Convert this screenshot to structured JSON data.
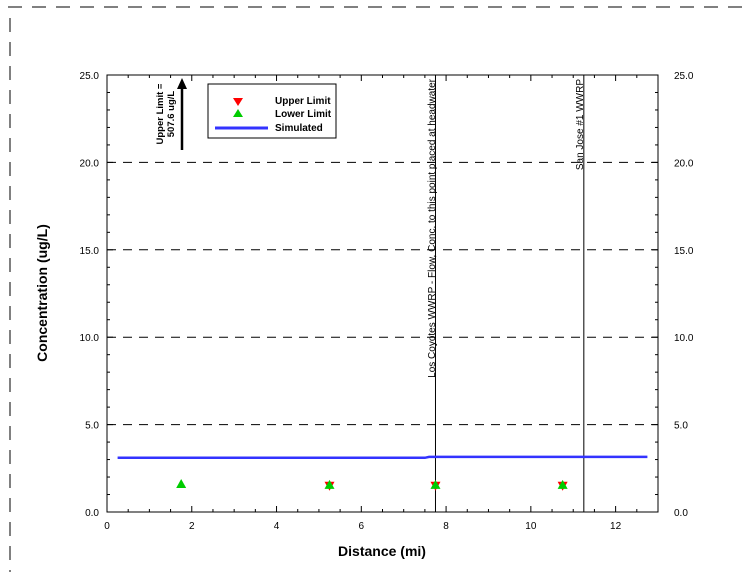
{
  "chart_data": {
    "type": "scatter",
    "xlabel": "Distance (mi)",
    "ylabel": "Concentration (ug/L)",
    "xlim": [
      0,
      13
    ],
    "ylim": [
      0,
      25
    ],
    "x_ticks": [
      "0",
      "2",
      "4",
      "6",
      "8",
      "10",
      "12"
    ],
    "y_ticks": [
      "0.0",
      "5.0",
      "10.0",
      "15.0",
      "20.0",
      "25.0"
    ],
    "grid": "horizontal dashed",
    "legend_position": "top-left",
    "series": [
      {
        "name": "Upper Limit",
        "marker": "triangle-down",
        "color": "#ff0000",
        "x": [
          5.25,
          7.75,
          10.75
        ],
        "y": [
          1.5,
          1.5,
          1.5
        ]
      },
      {
        "name": "Lower Limit",
        "marker": "triangle-up",
        "color": "#00cc00",
        "x": [
          1.75,
          5.25,
          7.75,
          10.75
        ],
        "y": [
          1.6,
          1.55,
          1.55,
          1.55
        ]
      },
      {
        "name": "Simulated",
        "marker": "line",
        "color": "#3333ff",
        "x": [
          0.25,
          7.5,
          7.6,
          12.75
        ],
        "y": [
          3.1,
          3.1,
          3.15,
          3.15
        ]
      }
    ],
    "vertical_lines": [
      {
        "x": 7.75,
        "label": "Los Coyotes WWRP - Flow, Conc. to this point placed at headwater"
      },
      {
        "x": 11.25,
        "label": "San Jose #1 WWRP"
      }
    ],
    "upper_limit_note": {
      "x": 1.75,
      "line1": "Upper Limit =",
      "line2": "507.6 ug/L"
    }
  }
}
